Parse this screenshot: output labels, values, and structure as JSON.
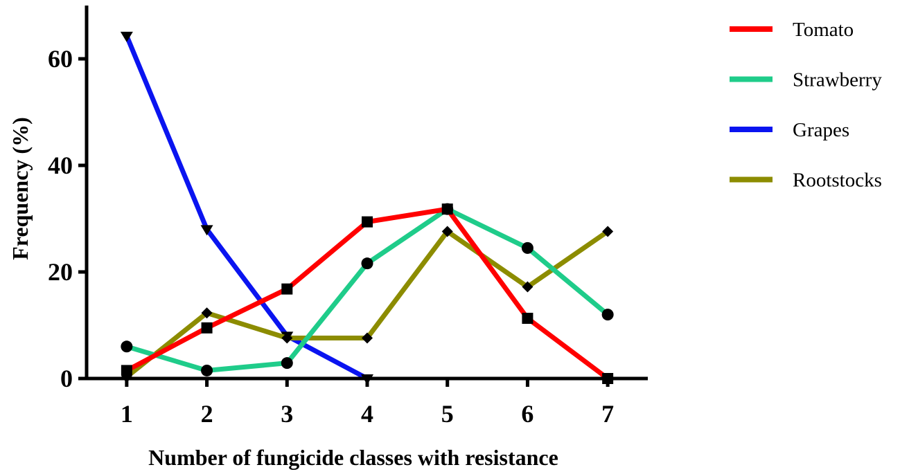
{
  "chart_data": {
    "type": "line",
    "title": "",
    "xlabel": "Number of fungicide classes with resistance",
    "ylabel": "Frequency (%)",
    "x": [
      1,
      2,
      3,
      4,
      5,
      6,
      7
    ],
    "xlim": [
      0.5,
      7.5
    ],
    "ylim": [
      0,
      70
    ],
    "yticks": [
      0,
      20,
      40,
      60
    ],
    "grid": false,
    "legend_position": "right",
    "series": [
      {
        "name": "Tomato",
        "color": "#ff0000",
        "marker": "square",
        "x": [
          1,
          2,
          3,
          4,
          5,
          6,
          7
        ],
        "values": [
          1.5,
          9.5,
          16.8,
          29.4,
          31.8,
          11.3,
          0
        ]
      },
      {
        "name": "Strawberry",
        "color": "#1fcc8a",
        "marker": "circle",
        "x": [
          1,
          2,
          3,
          4,
          5,
          6,
          7
        ],
        "values": [
          6.0,
          1.5,
          2.9,
          21.6,
          31.8,
          24.5,
          12.0
        ]
      },
      {
        "name": "Grapes",
        "color": "#0a14f0",
        "marker": "triangle-down",
        "x": [
          1,
          2,
          3,
          4
        ],
        "values": [
          64.3,
          28.0,
          8.0,
          0
        ]
      },
      {
        "name": "Rootstocks",
        "color": "#8c8c00",
        "marker": "diamond",
        "x": [
          1,
          2,
          3,
          4,
          5,
          6,
          7
        ],
        "values": [
          0.3,
          12.3,
          7.6,
          7.6,
          27.6,
          17.2,
          27.6
        ]
      }
    ]
  }
}
